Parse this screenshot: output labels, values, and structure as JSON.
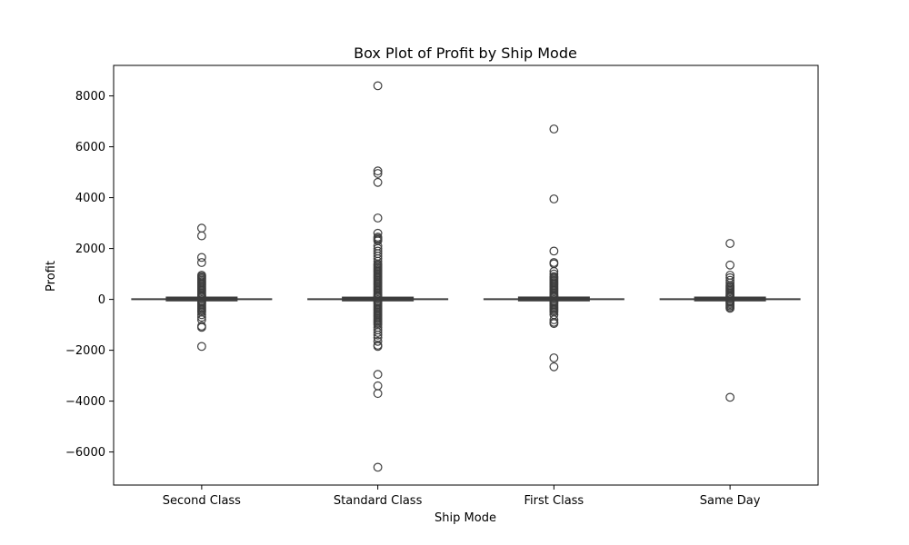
{
  "chart_data": {
    "type": "box",
    "title": "Box Plot of Profit by Ship Mode",
    "xlabel": "Ship Mode",
    "ylabel": "Profit",
    "ylim": [
      -7300,
      9200
    ],
    "yticks": [
      -6000,
      -4000,
      -2000,
      0,
      2000,
      4000,
      6000,
      8000
    ],
    "ytick_labels": [
      "−6000",
      "−4000",
      "−2000",
      "0",
      "2000",
      "4000",
      "6000",
      "8000"
    ],
    "grid": false,
    "legend": "none",
    "box_color": "#3d3d3d",
    "categories": [
      "Second Class",
      "Standard Class",
      "First Class",
      "Same Day"
    ],
    "boxes": [
      {
        "name": "Second Class",
        "whisker_low": -40,
        "q1": 2,
        "median": 9,
        "q3": 30,
        "whisker_high": 70,
        "outliers": [
          2800,
          2500,
          1650,
          1450,
          950,
          900,
          850,
          800,
          750,
          700,
          650,
          600,
          550,
          500,
          450,
          400,
          350,
          300,
          250,
          200,
          150,
          120,
          100,
          -80,
          -100,
          -150,
          -200,
          -250,
          -300,
          -350,
          -400,
          -450,
          -500,
          -600,
          -700,
          -800,
          -1050,
          -1100,
          -1850
        ]
      },
      {
        "name": "Standard Class",
        "whisker_low": -40,
        "q1": 2,
        "median": 8,
        "q3": 28,
        "whisker_high": 70,
        "outliers": [
          8400,
          5050,
          4950,
          4600,
          3200,
          2600,
          2450,
          2400,
          2350,
          2300,
          2100,
          2000,
          1900,
          1800,
          1700,
          1600,
          1500,
          1400,
          1350,
          1300,
          1250,
          1200,
          1150,
          1100,
          1050,
          1000,
          950,
          900,
          850,
          800,
          750,
          700,
          650,
          600,
          550,
          500,
          450,
          400,
          350,
          300,
          250,
          200,
          150,
          120,
          100,
          -80,
          -100,
          -150,
          -200,
          -250,
          -300,
          -350,
          -400,
          -450,
          -500,
          -550,
          -600,
          -650,
          -700,
          -750,
          -800,
          -850,
          -900,
          -950,
          -1000,
          -1100,
          -1200,
          -1300,
          -1400,
          -1500,
          -1650,
          -1800,
          -1850,
          -2950,
          -3400,
          -3700,
          -6600
        ]
      },
      {
        "name": "First Class",
        "whisker_low": -40,
        "q1": 2,
        "median": 10,
        "q3": 32,
        "whisker_high": 75,
        "outliers": [
          6700,
          3950,
          1900,
          1450,
          1400,
          1100,
          1000,
          900,
          850,
          800,
          750,
          700,
          650,
          600,
          550,
          500,
          450,
          400,
          350,
          300,
          250,
          200,
          150,
          120,
          100,
          -80,
          -100,
          -150,
          -200,
          -250,
          -300,
          -350,
          -400,
          -450,
          -500,
          -600,
          -800,
          -900,
          -950,
          -2300,
          -2650
        ]
      },
      {
        "name": "Same Day",
        "whisker_low": -40,
        "q1": 2,
        "median": 9,
        "q3": 30,
        "whisker_high": 70,
        "outliers": [
          2200,
          1350,
          950,
          850,
          750,
          650,
          550,
          500,
          450,
          400,
          350,
          300,
          250,
          200,
          150,
          120,
          100,
          -80,
          -100,
          -150,
          -200,
          -250,
          -300,
          -350,
          -3850
        ]
      }
    ]
  }
}
